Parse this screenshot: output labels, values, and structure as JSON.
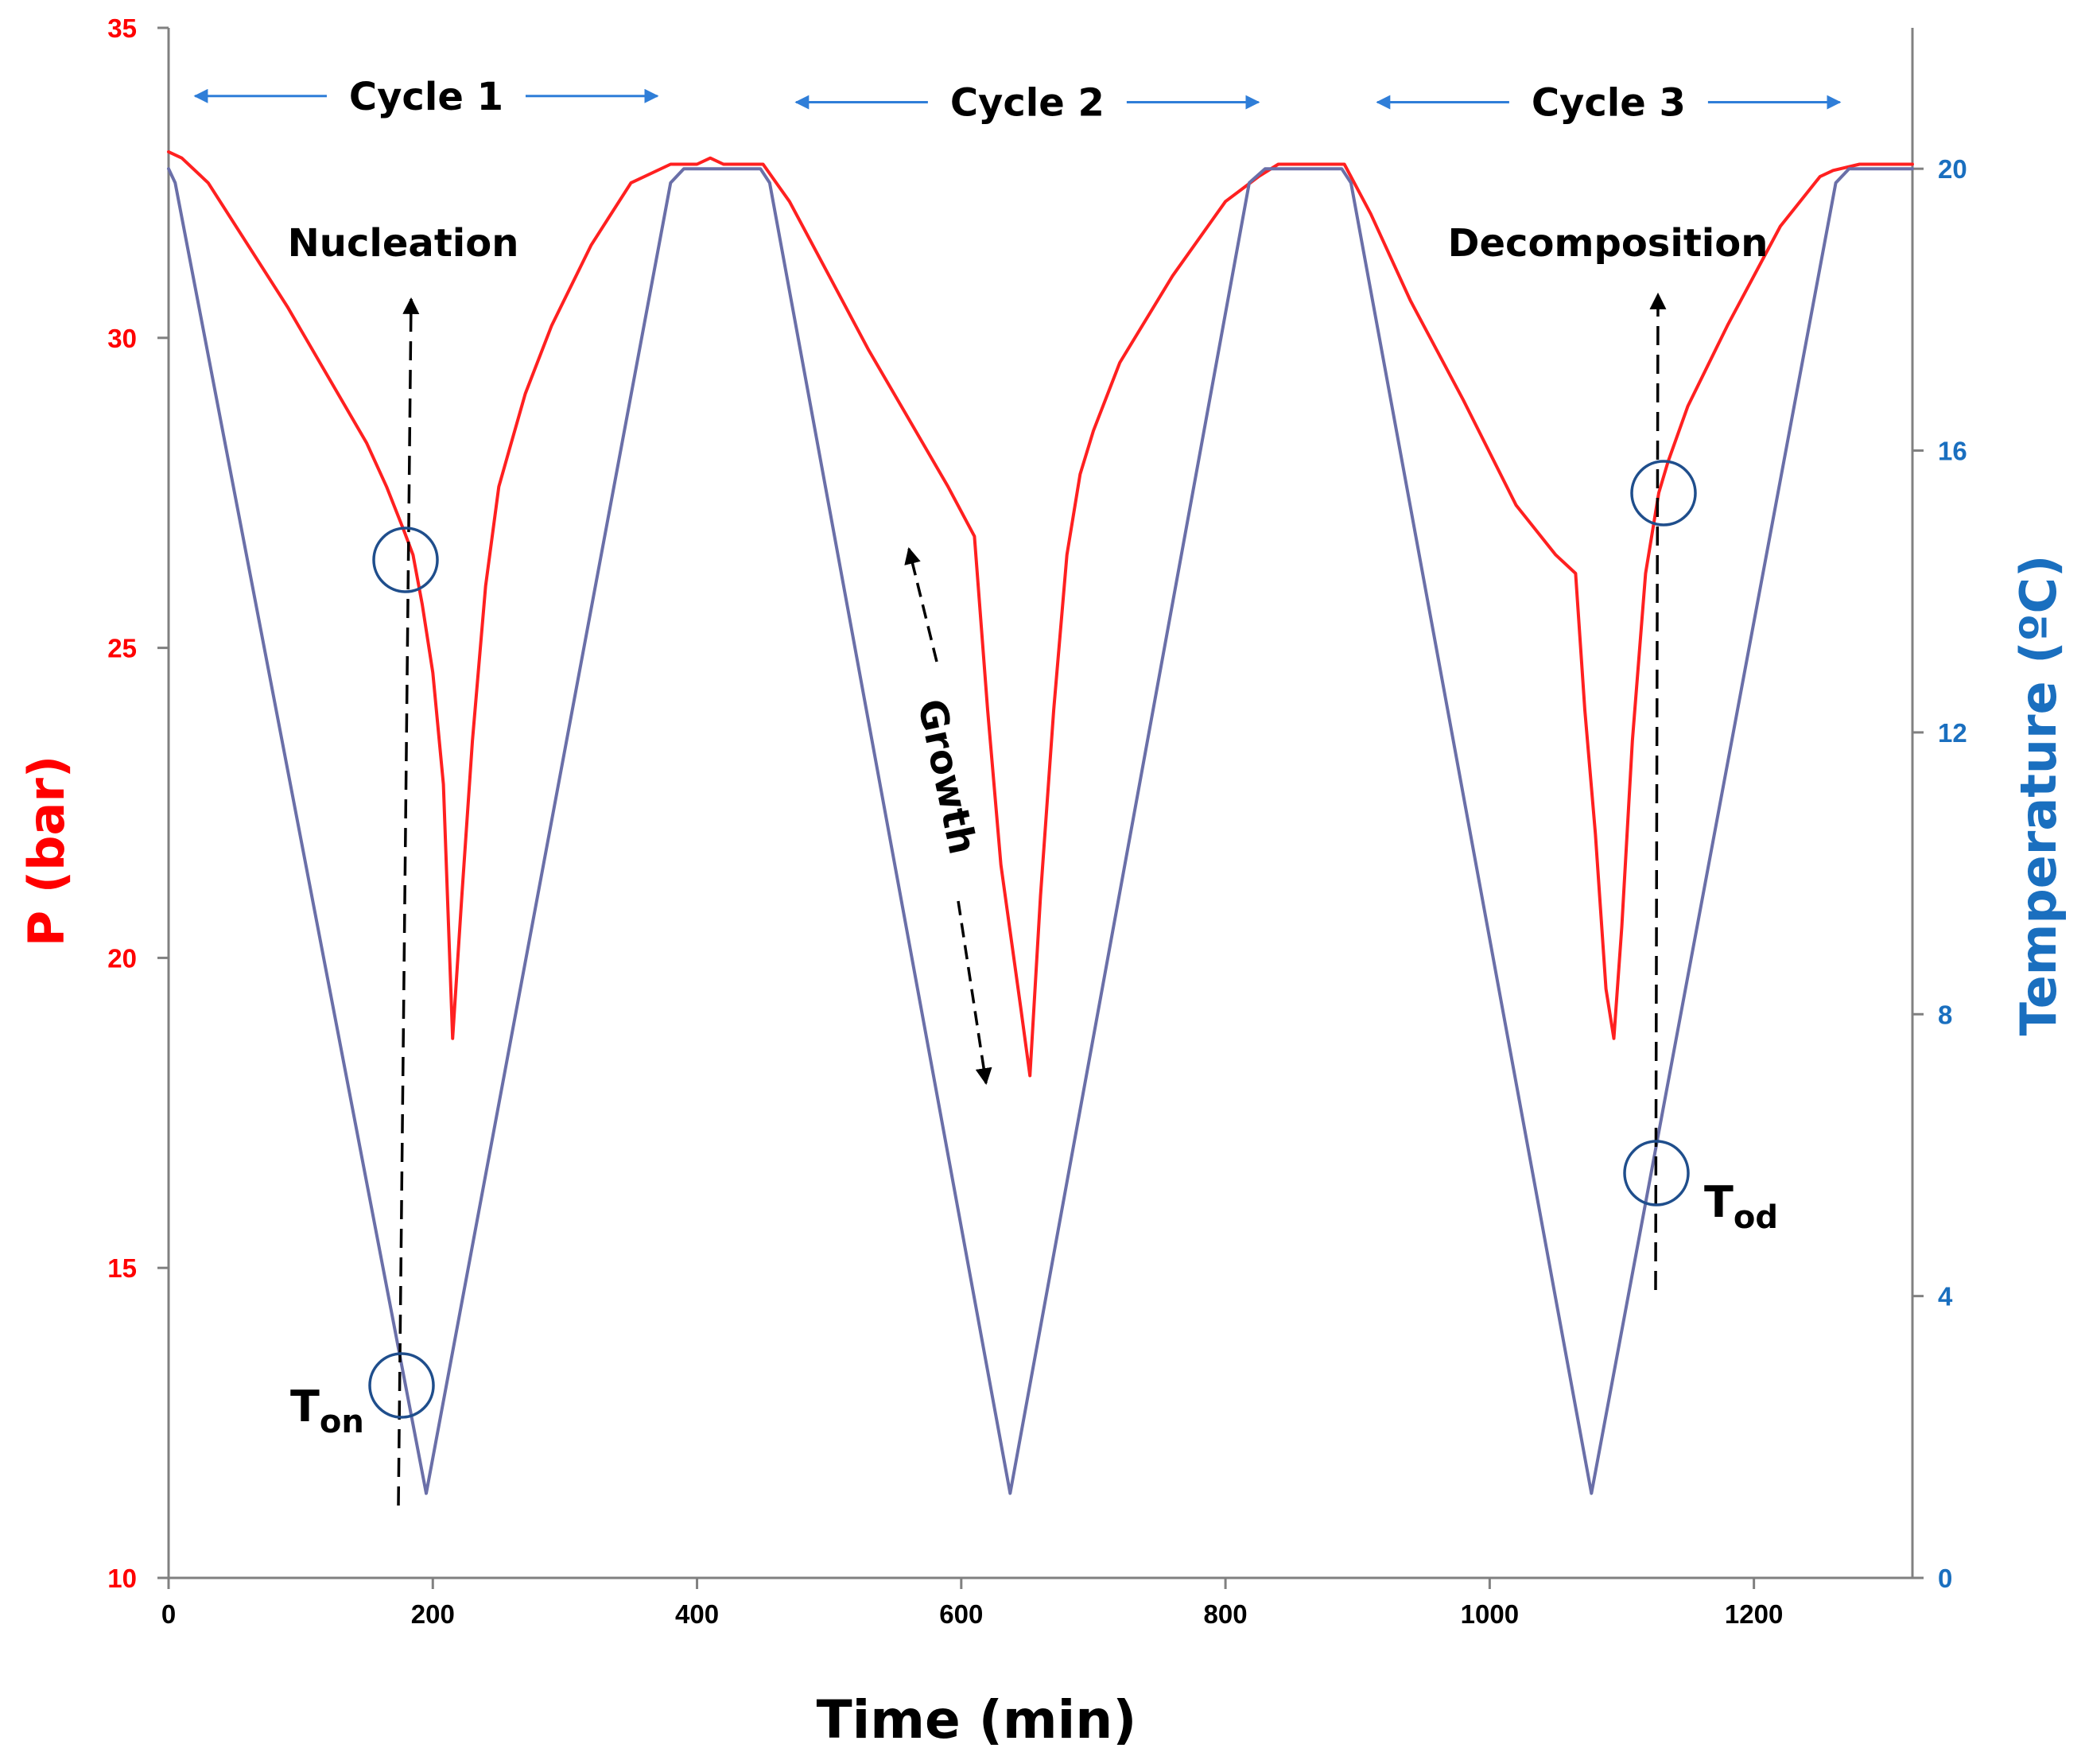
{
  "chart_data": {
    "type": "line",
    "xlabel": "Time (min)",
    "ylabel_left": "P (bar)",
    "ylabel_right": "Temperature (ºC)",
    "xlim": [
      0,
      1320
    ],
    "ylim_left": [
      10,
      35
    ],
    "ylim_right": [
      0,
      22
    ],
    "x_ticks": [
      0,
      200,
      400,
      600,
      800,
      1000,
      1200
    ],
    "y_left_ticks": [
      10,
      15,
      20,
      25,
      30,
      35
    ],
    "y_right_ticks": [
      0,
      4,
      8,
      12,
      16,
      20
    ],
    "grid": false,
    "colors": {
      "pressure": "#ff2020",
      "temperature": "#6a6fa8",
      "left_axis": "#ff0000",
      "right_axis": "#1a6fbf",
      "arrow": "#2f7ed8",
      "circle": "#1f4e8c"
    },
    "series": [
      {
        "name": "Pressure",
        "axis": "left",
        "x": [
          0,
          10,
          30,
          60,
          90,
          120,
          150,
          165,
          178,
          185,
          192,
          200,
          208,
          215,
          222,
          230,
          240,
          250,
          258,
          270,
          290,
          320,
          350,
          380,
          400,
          410,
          420,
          440,
          450,
          470,
          500,
          530,
          560,
          590,
          610,
          620,
          630,
          645,
          652,
          660,
          670,
          680,
          690,
          700,
          720,
          760,
          800,
          825,
          840,
          860,
          880,
          890,
          910,
          940,
          980,
          1020,
          1050,
          1065,
          1072,
          1080,
          1088,
          1094,
          1100,
          1108,
          1118,
          1128,
          1135,
          1150,
          1180,
          1220,
          1250,
          1260,
          1280,
          1300,
          1320
        ],
        "values": [
          33.0,
          32.9,
          32.5,
          31.5,
          30.5,
          29.4,
          28.3,
          27.6,
          26.9,
          26.5,
          25.7,
          24.6,
          22.8,
          18.7,
          21.0,
          23.5,
          26.0,
          27.6,
          28.2,
          29.1,
          30.2,
          31.5,
          32.5,
          32.8,
          32.8,
          32.9,
          32.8,
          32.8,
          32.8,
          32.2,
          31.0,
          29.8,
          28.7,
          27.6,
          26.8,
          24.0,
          21.5,
          19.2,
          18.1,
          21.0,
          24.0,
          26.5,
          27.8,
          28.5,
          29.6,
          31.0,
          32.2,
          32.6,
          32.8,
          32.8,
          32.8,
          32.8,
          32.0,
          30.6,
          29.0,
          27.3,
          26.5,
          26.2,
          24.0,
          22.0,
          19.5,
          18.7,
          20.5,
          23.5,
          26.2,
          27.5,
          28.0,
          28.9,
          30.2,
          31.8,
          32.6,
          32.7,
          32.8,
          32.8,
          32.8
        ]
      },
      {
        "name": "Temperature",
        "axis": "right",
        "x": [
          0,
          5,
          195,
          380,
          390,
          448,
          455,
          637,
          818,
          830,
          888,
          895,
          1077,
          1262,
          1272,
          1320
        ],
        "values": [
          20.0,
          19.8,
          1.2,
          19.8,
          20.0,
          20.0,
          19.8,
          1.2,
          19.8,
          20.0,
          20.0,
          19.8,
          1.2,
          19.8,
          20.0,
          20.0
        ]
      }
    ],
    "annotations": {
      "cycles": [
        {
          "label": "Cycle 1",
          "x_start": 20,
          "x_end": 370,
          "y": 33.9
        },
        {
          "label": "Cycle 2",
          "x_start": 475,
          "x_end": 825,
          "y": 33.8
        },
        {
          "label": "Cycle 3",
          "x_start": 915,
          "x_end": 1265,
          "y": 33.8
        }
      ],
      "nucleation": "Nucleation",
      "growth": "Growth",
      "decomposition": "Decomposition",
      "t_on": {
        "main": "T",
        "sub": "on"
      },
      "t_od": {
        "main": "T",
        "sub": "od"
      }
    }
  }
}
